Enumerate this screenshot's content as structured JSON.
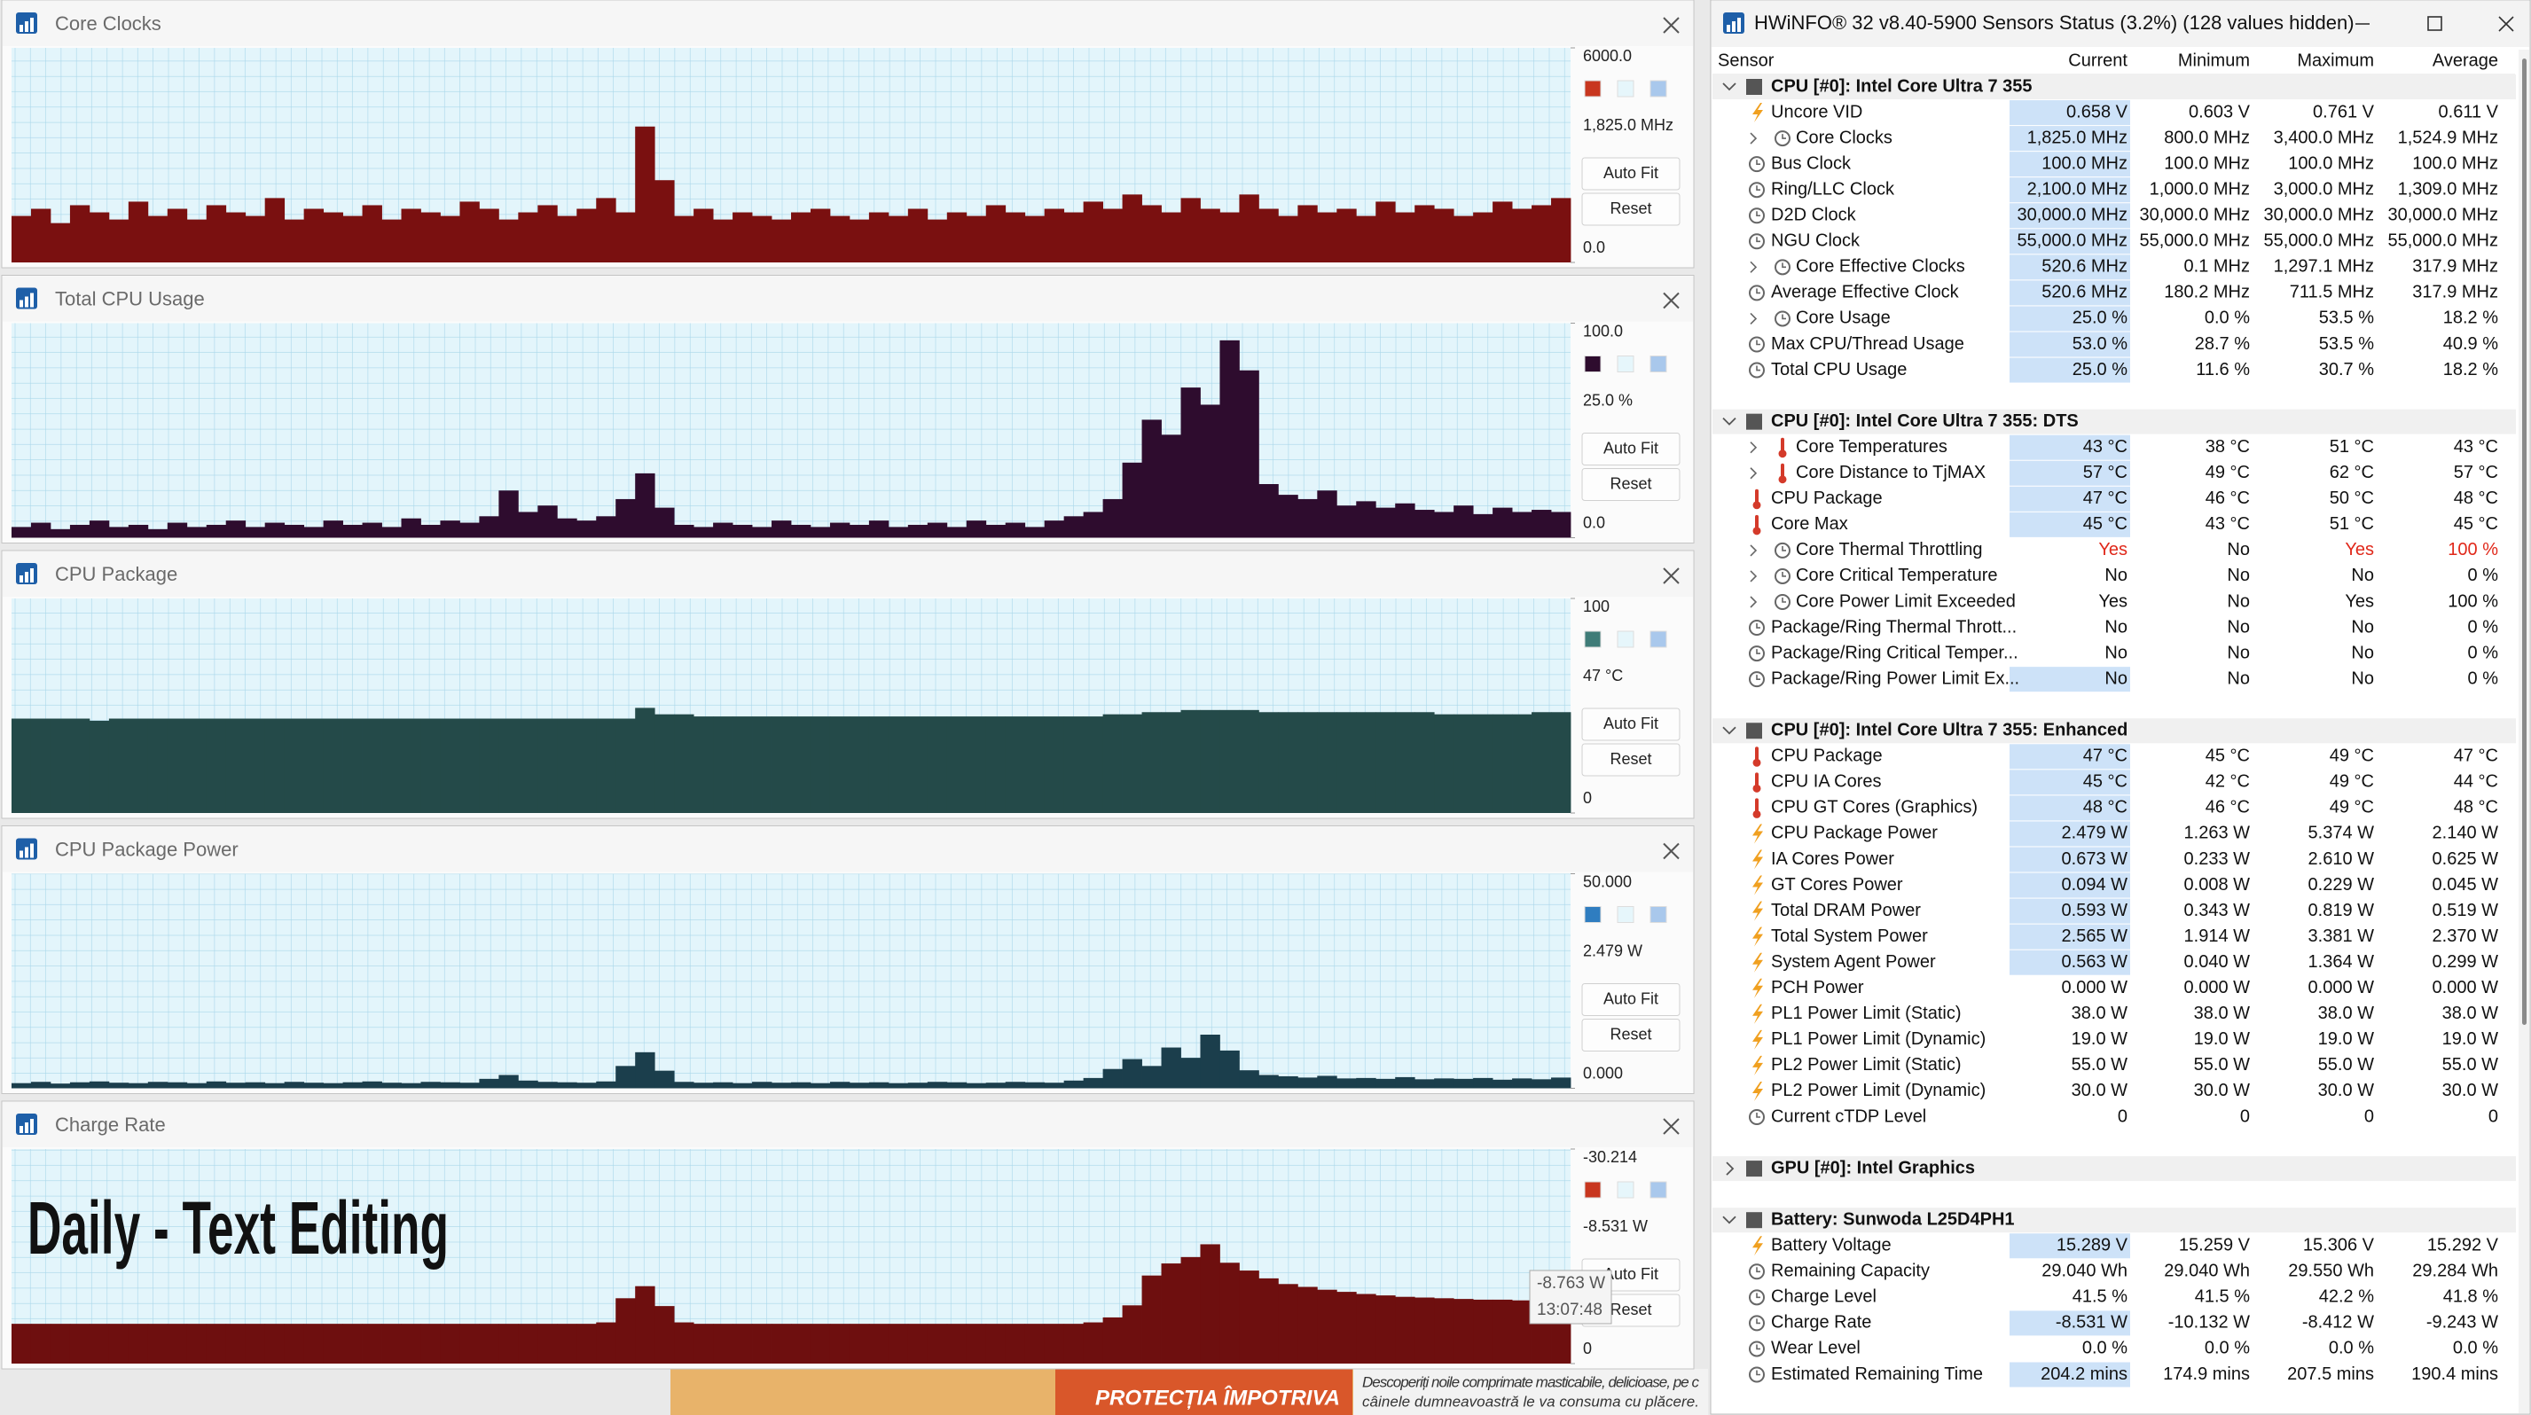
{
  "chart_data": [
    {
      "type": "bar",
      "title": "Core Clocks",
      "color": "#c8361f",
      "bar_color": "#7a1010",
      "ylim": [
        0,
        6000
      ],
      "yticks": [
        {
          "value": 0,
          "label": "0.0"
        },
        {
          "value": 6000,
          "label": "6000.0"
        }
      ],
      "current_label": "1,825.0 MHz",
      "values": [
        1300,
        1500,
        1100,
        1600,
        1400,
        1200,
        1700,
        1300,
        1500,
        1200,
        1600,
        1400,
        1300,
        1800,
        1200,
        1500,
        1400,
        1300,
        1600,
        1200,
        1500,
        1400,
        1300,
        1700,
        1500,
        1200,
        1400,
        1600,
        1300,
        1500,
        1800,
        1400,
        3800,
        2300,
        1300,
        1500,
        1200,
        1400,
        1300,
        1200,
        1400,
        1500,
        1300,
        1200,
        1400,
        1300,
        1500,
        1200,
        1400,
        1300,
        1600,
        1400,
        1300,
        1500,
        1400,
        1700,
        1500,
        1900,
        1600,
        1400,
        1800,
        1500,
        1400,
        1900,
        1500,
        1300,
        1600,
        1400,
        1500,
        1300,
        1700,
        1400,
        1600,
        1500,
        1300,
        1400,
        1700,
        1500,
        1600,
        1800
      ]
    },
    {
      "type": "bar",
      "title": "Total CPU Usage",
      "color": "#2e0c2e",
      "bar_color": "#2e0c2e",
      "ylim": [
        0,
        100
      ],
      "yticks": [
        {
          "value": 0,
          "label": "0.0"
        },
        {
          "value": 100,
          "label": "100.0"
        }
      ],
      "current_label": "25.0 %",
      "values": [
        5,
        7,
        4,
        6,
        8,
        5,
        6,
        4,
        7,
        5,
        6,
        8,
        5,
        7,
        6,
        5,
        8,
        6,
        7,
        5,
        9,
        6,
        8,
        7,
        10,
        22,
        12,
        15,
        9,
        8,
        10,
        18,
        30,
        14,
        6,
        5,
        7,
        6,
        5,
        8,
        6,
        5,
        7,
        6,
        8,
        5,
        6,
        7,
        5,
        8,
        6,
        7,
        5,
        8,
        10,
        12,
        18,
        35,
        55,
        48,
        70,
        62,
        92,
        78,
        25,
        20,
        18,
        22,
        15,
        17,
        14,
        16,
        13,
        12,
        15,
        11,
        14,
        12,
        13,
        12
      ]
    },
    {
      "type": "bar",
      "title": "CPU Package",
      "color": "#3f7c78",
      "bar_color": "#244a49",
      "ylim": [
        0,
        100
      ],
      "yticks": [
        0,
        100
      ],
      "current_label": "47 °C",
      "values": [
        44,
        44,
        44,
        44,
        43,
        44,
        44,
        44,
        44,
        44,
        44,
        44,
        44,
        44,
        44,
        44,
        44,
        44,
        44,
        44,
        44,
        44,
        44,
        44,
        44,
        44,
        44,
        44,
        44,
        44,
        44,
        44,
        49,
        46,
        46,
        45,
        45,
        45,
        45,
        45,
        45,
        45,
        45,
        45,
        45,
        45,
        45,
        45,
        45,
        45,
        45,
        45,
        45,
        45,
        45,
        45,
        46,
        46,
        47,
        47,
        48,
        48,
        48,
        48,
        47,
        47,
        47,
        47,
        47,
        47,
        47,
        47,
        47,
        46,
        46,
        46,
        46,
        46,
        47,
        47
      ]
    },
    {
      "type": "bar",
      "title": "CPU Package Power",
      "color": "#2f7dc0",
      "bar_color": "#1b3e4c",
      "ylim": [
        0,
        50
      ],
      "yticks": [
        {
          "value": 0,
          "label": "0.000"
        },
        {
          "value": 50,
          "label": "50.000"
        }
      ],
      "current_label": "2.479 W",
      "values": [
        1.2,
        1.5,
        1.1,
        1.4,
        1.6,
        1.3,
        1.2,
        1.5,
        1.4,
        1.2,
        1.6,
        1.3,
        1.4,
        1.2,
        1.5,
        1.3,
        1.2,
        1.4,
        1.6,
        1.3,
        1.2,
        1.5,
        1.4,
        1.3,
        2.2,
        3.1,
        1.8,
        1.5,
        1.4,
        1.3,
        1.6,
        5.2,
        8.4,
        4.1,
        1.5,
        1.3,
        1.4,
        1.2,
        1.5,
        1.3,
        1.4,
        1.2,
        1.5,
        1.3,
        1.4,
        1.2,
        1.3,
        1.5,
        1.4,
        1.2,
        1.3,
        1.5,
        1.4,
        1.3,
        1.8,
        2.4,
        4.5,
        6.8,
        5.2,
        9.5,
        7.1,
        12.5,
        8.8,
        4.2,
        3.1,
        2.8,
        2.5,
        2.9,
        2.3,
        2.4,
        2.2,
        2.6,
        2.1,
        2.3,
        2.2,
        2.4,
        2.0,
        2.3,
        2.1,
        2.5
      ]
    },
    {
      "type": "bar",
      "title": "Charge Rate",
      "color": "#c8361f",
      "bar_color": "#6e0f0f",
      "ylim": [
        0,
        -30.214
      ],
      "yticks": [
        0,
        -30.214
      ],
      "current_label": "-8.531 W",
      "annotation": "Daily - Text Editing",
      "tooltip": [
        "-8.763 W",
        "13:07:48"
      ],
      "values": [
        -5.6,
        -5.6,
        -5.6,
        -5.6,
        -5.6,
        -5.6,
        -5.6,
        -5.6,
        -5.6,
        -5.6,
        -5.6,
        -5.6,
        -5.6,
        -5.6,
        -5.6,
        -5.6,
        -5.6,
        -5.6,
        -5.6,
        -5.6,
        -5.6,
        -5.6,
        -5.6,
        -5.6,
        -5.6,
        -5.6,
        -5.6,
        -5.6,
        -5.6,
        -5.6,
        -5.8,
        -9.2,
        -10.9,
        -8.1,
        -5.8,
        -5.6,
        -5.6,
        -5.6,
        -5.6,
        -5.6,
        -5.6,
        -5.6,
        -5.6,
        -5.6,
        -5.6,
        -5.6,
        -5.6,
        -5.6,
        -5.6,
        -5.6,
        -5.6,
        -5.6,
        -5.6,
        -5.6,
        -5.6,
        -5.8,
        -6.5,
        -8.2,
        -12.4,
        -14.1,
        -15.0,
        -16.8,
        -14.2,
        -13.1,
        -12.0,
        -11.2,
        -10.8,
        -10.4,
        -10.1,
        -9.8,
        -9.6,
        -9.4,
        -9.3,
        -9.2,
        -9.1,
        -9.0,
        -9.0,
        -8.9,
        -8.8,
        -8.8
      ]
    }
  ],
  "graph_buttons": [
    "Auto Fit",
    "Reset"
  ],
  "ad": {
    "headline": "PROTECȚIA ÎMPOTRIVA",
    "text": "Descoperiți noile comprimate masticabile, delicioase, pe c",
    "text2": "câinele dumneavoastră le va consuma cu plăcere."
  },
  "sensors": {
    "title": "HWiNFO® 32 v8.40-5900 Sensors Status (3.2%) (128 values hidden)",
    "columns": [
      "Sensor",
      "Current",
      "Minimum",
      "Maximum",
      "Average"
    ],
    "groups": [
      {
        "name": "CPU [#0]: Intel Core Ultra 7 355",
        "rows": [
          {
            "label": "Uncore VID",
            "values": [
              "0.658 V",
              "0.603 V",
              "0.761 V",
              "0.611 V"
            ],
            "icon": "volt",
            "hl": true
          },
          {
            "label": "Core Clocks",
            "values": [
              "1,825.0 MHz",
              "800.0 MHz",
              "3,400.0 MHz",
              "1,524.9 MHz"
            ],
            "icon": "clock",
            "expand": true,
            "hl": true
          },
          {
            "label": "Bus Clock",
            "values": [
              "100.0 MHz",
              "100.0 MHz",
              "100.0 MHz",
              "100.0 MHz"
            ],
            "icon": "clock",
            "hl": true
          },
          {
            "label": "Ring/LLC Clock",
            "values": [
              "2,100.0 MHz",
              "1,000.0 MHz",
              "3,000.0 MHz",
              "1,309.0 MHz"
            ],
            "icon": "clock",
            "hl": true
          },
          {
            "label": "D2D Clock",
            "values": [
              "30,000.0 MHz",
              "30,000.0 MHz",
              "30,000.0 MHz",
              "30,000.0 MHz"
            ],
            "icon": "clock",
            "hl": true
          },
          {
            "label": "NGU Clock",
            "values": [
              "55,000.0 MHz",
              "55,000.0 MHz",
              "55,000.0 MHz",
              "55,000.0 MHz"
            ],
            "icon": "clock",
            "hl": true
          },
          {
            "label": "Core Effective Clocks",
            "values": [
              "520.6 MHz",
              "0.1 MHz",
              "1,297.1 MHz",
              "317.9 MHz"
            ],
            "icon": "clock",
            "expand": true,
            "hl": true
          },
          {
            "label": "Average Effective Clock",
            "values": [
              "520.6 MHz",
              "180.2 MHz",
              "711.5 MHz",
              "317.9 MHz"
            ],
            "icon": "clock",
            "hl": true
          },
          {
            "label": "Core Usage",
            "values": [
              "25.0 %",
              "0.0 %",
              "53.5 %",
              "18.2 %"
            ],
            "icon": "clock",
            "expand": true,
            "hl": true
          },
          {
            "label": "Max CPU/Thread Usage",
            "values": [
              "53.0 %",
              "28.7 %",
              "53.5 %",
              "40.9 %"
            ],
            "icon": "clock",
            "hl": true
          },
          {
            "label": "Total CPU Usage",
            "values": [
              "25.0 %",
              "11.6 %",
              "30.7 %",
              "18.2 %"
            ],
            "icon": "clock",
            "hl": true
          }
        ]
      },
      {
        "name": "CPU [#0]: Intel Core Ultra 7 355: DTS",
        "rows": [
          {
            "label": "Core Temperatures",
            "values": [
              "43 °C",
              "38 °C",
              "51 °C",
              "43 °C"
            ],
            "icon": "temp",
            "expand": true,
            "hl": true
          },
          {
            "label": "Core Distance to TjMAX",
            "values": [
              "57 °C",
              "49 °C",
              "62 °C",
              "57 °C"
            ],
            "icon": "temp",
            "expand": true,
            "hl": true
          },
          {
            "label": "CPU Package",
            "values": [
              "47 °C",
              "46 °C",
              "50 °C",
              "48 °C"
            ],
            "icon": "temp",
            "hl": true
          },
          {
            "label": "Core Max",
            "values": [
              "45 °C",
              "43 °C",
              "51 °C",
              "45 °C"
            ],
            "icon": "temp",
            "hl": true
          },
          {
            "label": "Core Thermal Throttling",
            "values": [
              "Yes",
              "No",
              "Yes",
              "100 %"
            ],
            "icon": "clock",
            "expand": true,
            "alert": [
              true,
              false,
              true,
              true
            ]
          },
          {
            "label": "Core Critical Temperature",
            "values": [
              "No",
              "No",
              "No",
              "0 %"
            ],
            "icon": "clock",
            "expand": true
          },
          {
            "label": "Core Power Limit Exceeded",
            "values": [
              "Yes",
              "No",
              "Yes",
              "100 %"
            ],
            "icon": "clock",
            "expand": true
          },
          {
            "label": "Package/Ring Thermal Thrott...",
            "values": [
              "No",
              "No",
              "No",
              "0 %"
            ],
            "icon": "clock"
          },
          {
            "label": "Package/Ring Critical Temper...",
            "values": [
              "No",
              "No",
              "No",
              "0 %"
            ],
            "icon": "clock"
          },
          {
            "label": "Package/Ring Power Limit Ex...",
            "values": [
              "No",
              "No",
              "No",
              "0 %"
            ],
            "icon": "clock",
            "hl": true
          }
        ]
      },
      {
        "name": "CPU [#0]: Intel Core Ultra 7 355: Enhanced",
        "rows": [
          {
            "label": "CPU Package",
            "values": [
              "47 °C",
              "45 °C",
              "49 °C",
              "47 °C"
            ],
            "icon": "temp",
            "hl": true
          },
          {
            "label": "CPU IA Cores",
            "values": [
              "45 °C",
              "42 °C",
              "49 °C",
              "44 °C"
            ],
            "icon": "temp",
            "hl": true
          },
          {
            "label": "CPU GT Cores (Graphics)",
            "values": [
              "48 °C",
              "46 °C",
              "49 °C",
              "48 °C"
            ],
            "icon": "temp",
            "hl": true
          },
          {
            "label": "CPU Package Power",
            "values": [
              "2.479 W",
              "1.263 W",
              "5.374 W",
              "2.140 W"
            ],
            "icon": "volt",
            "hl": true
          },
          {
            "label": "IA Cores Power",
            "values": [
              "0.673 W",
              "0.233 W",
              "2.610 W",
              "0.625 W"
            ],
            "icon": "volt",
            "hl": true
          },
          {
            "label": "GT Cores Power",
            "values": [
              "0.094 W",
              "0.008 W",
              "0.229 W",
              "0.045 W"
            ],
            "icon": "volt",
            "hl": true
          },
          {
            "label": "Total DRAM Power",
            "values": [
              "0.593 W",
              "0.343 W",
              "0.819 W",
              "0.519 W"
            ],
            "icon": "volt",
            "hl": true
          },
          {
            "label": "Total System Power",
            "values": [
              "2.565 W",
              "1.914 W",
              "3.381 W",
              "2.370 W"
            ],
            "icon": "volt",
            "hl": true
          },
          {
            "label": "System Agent Power",
            "values": [
              "0.563 W",
              "0.040 W",
              "1.364 W",
              "0.299 W"
            ],
            "icon": "volt",
            "hl": true
          },
          {
            "label": "PCH Power",
            "values": [
              "0.000 W",
              "0.000 W",
              "0.000 W",
              "0.000 W"
            ],
            "icon": "volt"
          },
          {
            "label": "PL1 Power Limit (Static)",
            "values": [
              "38.0 W",
              "38.0 W",
              "38.0 W",
              "38.0 W"
            ],
            "icon": "volt"
          },
          {
            "label": "PL1 Power Limit (Dynamic)",
            "values": [
              "19.0 W",
              "19.0 W",
              "19.0 W",
              "19.0 W"
            ],
            "icon": "volt"
          },
          {
            "label": "PL2 Power Limit (Static)",
            "values": [
              "55.0 W",
              "55.0 W",
              "55.0 W",
              "55.0 W"
            ],
            "icon": "volt"
          },
          {
            "label": "PL2 Power Limit (Dynamic)",
            "values": [
              "30.0 W",
              "30.0 W",
              "30.0 W",
              "30.0 W"
            ],
            "icon": "volt"
          },
          {
            "label": "Current cTDP Level",
            "values": [
              "0",
              "0",
              "0",
              "0"
            ],
            "icon": "clock"
          }
        ]
      },
      {
        "name": "GPU [#0]: Intel Graphics",
        "collapsed": true,
        "rows": []
      },
      {
        "name": "Battery: Sunwoda L25D4PH1",
        "rows": [
          {
            "label": "Battery Voltage",
            "values": [
              "15.289 V",
              "15.259 V",
              "15.306 V",
              "15.292 V"
            ],
            "icon": "volt",
            "hl": true
          },
          {
            "label": "Remaining Capacity",
            "values": [
              "29.040 Wh",
              "29.040 Wh",
              "29.550 Wh",
              "29.284 Wh"
            ],
            "icon": "clock"
          },
          {
            "label": "Charge Level",
            "values": [
              "41.5 %",
              "41.5 %",
              "42.2 %",
              "41.8 %"
            ],
            "icon": "clock"
          },
          {
            "label": "Charge Rate",
            "values": [
              "-8.531 W",
              "-10.132 W",
              "-8.412 W",
              "-9.243 W"
            ],
            "icon": "clock",
            "hl": true
          },
          {
            "label": "Wear Level",
            "values": [
              "0.0 %",
              "0.0 %",
              "0.0 %",
              "0.0 %"
            ],
            "icon": "clock"
          },
          {
            "label": "Estimated Remaining Time",
            "values": [
              "204.2 mins",
              "174.9 mins",
              "207.5 mins",
              "190.4 mins"
            ],
            "icon": "clock",
            "hl": true
          }
        ]
      }
    ]
  }
}
